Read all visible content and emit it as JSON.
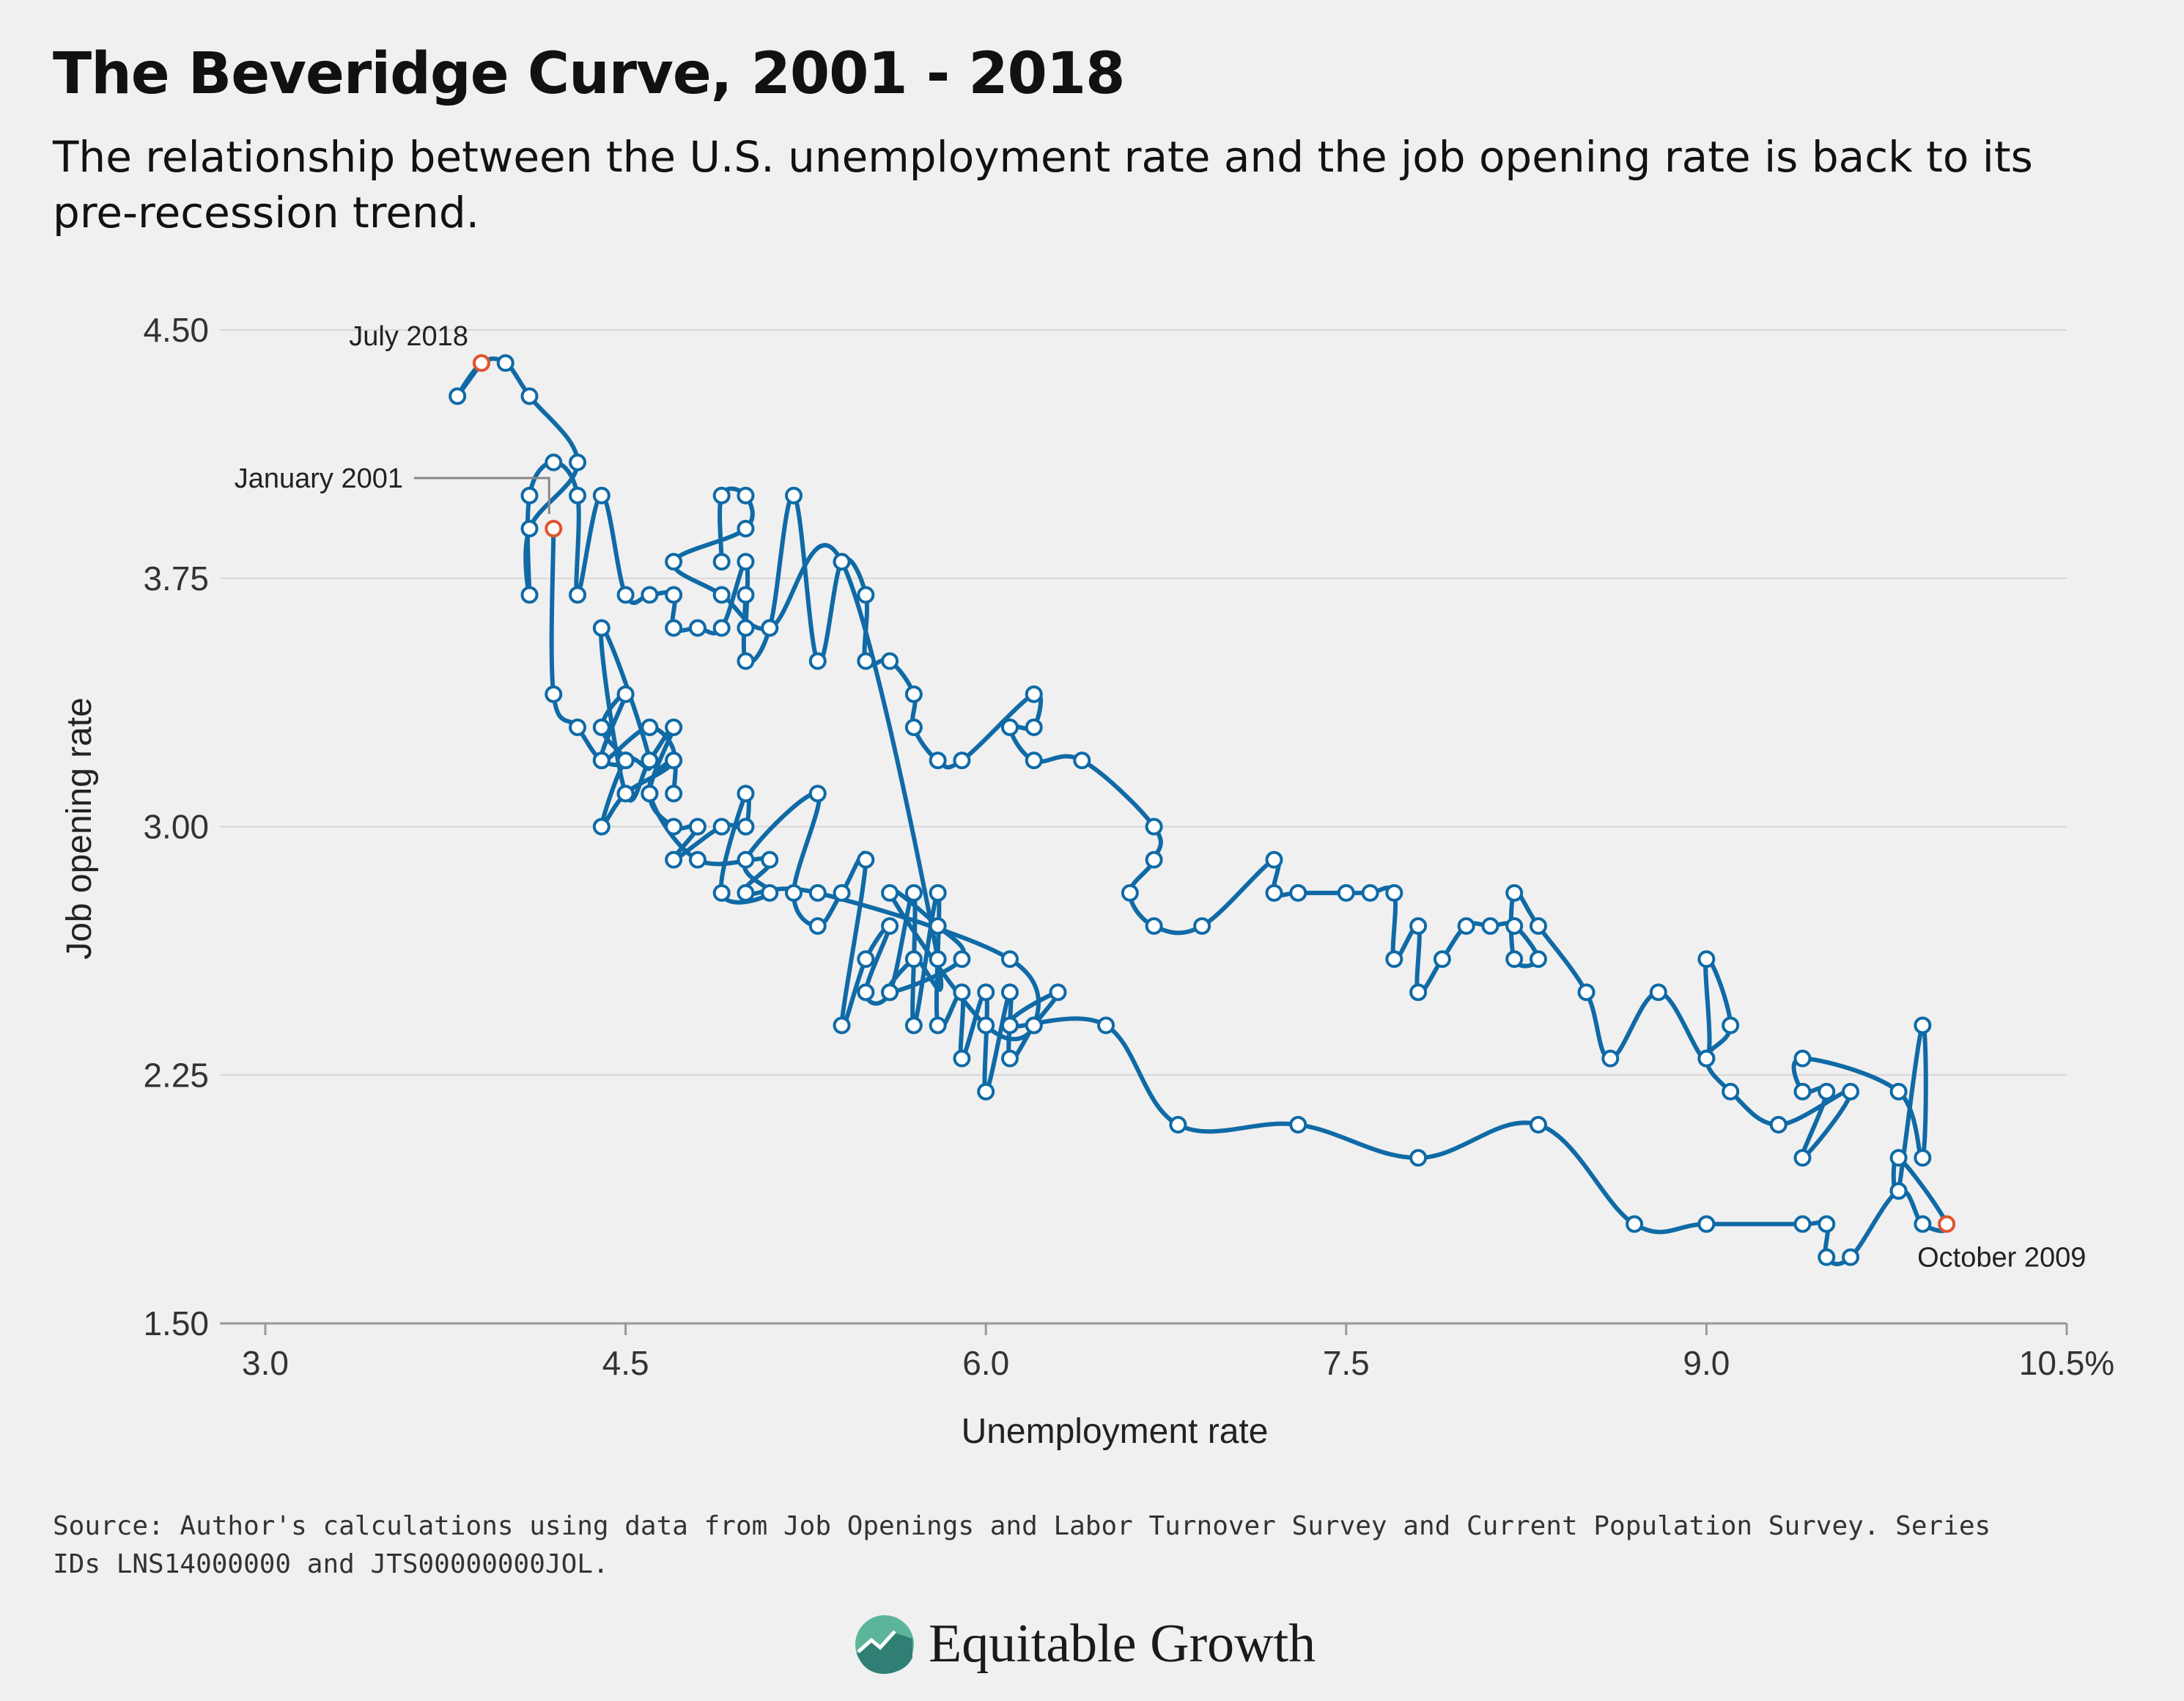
{
  "title": "The Beveridge Curve, 2001 - 2018",
  "subtitle": "The relationship between the U.S. unemployment rate and the job opening rate is back to its pre-recession trend.",
  "source": "Source: Author's calculations using data from Job Openings and Labor Turnover Survey and Current Population Survey. Series IDs LNS14000000 and JTS00000000JOL.",
  "logo": {
    "text": "Equitable Growth",
    "icon": "equitable-growth-logo-icon"
  },
  "colors": {
    "line": "#0f6aa6",
    "highlight": "#e0542e",
    "grid": "#d6d6d6",
    "background": "#f0f0f0"
  },
  "chart_data": {
    "type": "line",
    "xlabel": "Unemployment rate",
    "ylabel": "Job opening rate",
    "xlim": [
      3.0,
      10.5
    ],
    "ylim": [
      1.5,
      4.5
    ],
    "x_ticks": [
      "3.0",
      "4.5",
      "6.0",
      "7.5",
      "9.0",
      "10.5%"
    ],
    "x_tick_values": [
      3.0,
      4.5,
      6.0,
      7.5,
      9.0,
      10.5
    ],
    "y_ticks": [
      "1.50",
      "2.25",
      "3.00",
      "3.75",
      "4.50"
    ],
    "y_tick_values": [
      1.5,
      2.25,
      3.0,
      3.75,
      4.5
    ],
    "grid": true,
    "annotations": [
      {
        "label": "July 2018",
        "x": 3.9,
        "y": 4.4
      },
      {
        "label": "January 2001",
        "x": 4.2,
        "y": 3.9
      },
      {
        "label": "October 2009",
        "x": 10.0,
        "y": 1.8
      }
    ],
    "series": [
      {
        "points": [
          [
            4.2,
            3.9
          ],
          [
            4.2,
            3.4
          ],
          [
            4.3,
            3.3
          ],
          [
            4.4,
            3.2
          ],
          [
            4.5,
            3.2
          ],
          [
            4.4,
            3.3
          ],
          [
            4.5,
            3.4
          ],
          [
            4.4,
            3.2
          ],
          [
            4.6,
            3.3
          ],
          [
            4.7,
            3.2
          ],
          [
            4.5,
            3.1
          ],
          [
            4.4,
            3.0
          ],
          [
            4.5,
            3.2
          ],
          [
            4.6,
            3.2
          ],
          [
            4.4,
            3.6
          ],
          [
            4.5,
            3.1
          ],
          [
            4.6,
            3.2
          ],
          [
            4.7,
            3.3
          ],
          [
            4.6,
            3.1
          ],
          [
            4.7,
            3.0
          ],
          [
            4.8,
            3.0
          ],
          [
            4.7,
            2.9
          ],
          [
            4.9,
            3.0
          ],
          [
            5.0,
            3.0
          ],
          [
            5.0,
            3.1
          ],
          [
            4.9,
            2.8
          ],
          [
            5.1,
            2.8
          ],
          [
            5.0,
            2.9
          ],
          [
            5.3,
            3.1
          ],
          [
            5.2,
            2.8
          ],
          [
            5.3,
            2.7
          ],
          [
            5.4,
            2.8
          ],
          [
            5.5,
            2.9
          ],
          [
            5.4,
            2.4
          ],
          [
            5.5,
            2.6
          ],
          [
            5.6,
            2.7
          ],
          [
            5.5,
            2.5
          ],
          [
            5.6,
            2.5
          ],
          [
            5.7,
            2.8
          ],
          [
            5.7,
            2.4
          ],
          [
            5.8,
            2.8
          ],
          [
            5.8,
            2.4
          ],
          [
            5.9,
            2.5
          ],
          [
            5.9,
            2.3
          ],
          [
            6.0,
            2.5
          ],
          [
            6.0,
            2.2
          ],
          [
            6.1,
            2.5
          ],
          [
            6.1,
            2.3
          ],
          [
            6.2,
            2.4
          ],
          [
            6.3,
            2.5
          ],
          [
            6.1,
            2.4
          ],
          [
            6.5,
            2.4
          ],
          [
            6.8,
            2.1
          ],
          [
            7.3,
            2.1
          ],
          [
            7.8,
            2.0
          ],
          [
            8.3,
            2.1
          ],
          [
            8.7,
            1.8
          ],
          [
            9.0,
            1.8
          ],
          [
            9.4,
            1.8
          ],
          [
            9.5,
            1.8
          ],
          [
            9.5,
            1.7
          ],
          [
            9.6,
            1.7
          ],
          [
            9.8,
            1.9
          ],
          [
            9.9,
            1.8
          ],
          [
            10.0,
            1.8
          ],
          [
            9.8,
            2.0
          ],
          [
            9.8,
            1.9
          ],
          [
            9.9,
            2.4
          ],
          [
            9.9,
            2.0
          ],
          [
            9.8,
            2.2
          ],
          [
            9.4,
            2.3
          ],
          [
            9.4,
            2.2
          ],
          [
            9.5,
            2.2
          ],
          [
            9.4,
            2.0
          ],
          [
            9.6,
            2.2
          ],
          [
            9.3,
            2.1
          ],
          [
            9.1,
            2.2
          ],
          [
            9.0,
            2.3
          ],
          [
            9.1,
            2.4
          ],
          [
            9.0,
            2.6
          ],
          [
            9.0,
            2.3
          ],
          [
            8.8,
            2.5
          ],
          [
            8.6,
            2.3
          ],
          [
            8.5,
            2.5
          ],
          [
            8.3,
            2.7
          ],
          [
            8.2,
            2.8
          ],
          [
            8.2,
            2.6
          ],
          [
            8.3,
            2.6
          ],
          [
            8.2,
            2.7
          ],
          [
            8.1,
            2.7
          ],
          [
            8.0,
            2.7
          ],
          [
            7.9,
            2.6
          ],
          [
            7.8,
            2.5
          ],
          [
            7.8,
            2.7
          ],
          [
            7.7,
            2.6
          ],
          [
            7.7,
            2.8
          ],
          [
            7.6,
            2.8
          ],
          [
            7.5,
            2.8
          ],
          [
            7.3,
            2.8
          ],
          [
            7.2,
            2.8
          ],
          [
            7.2,
            2.9
          ],
          [
            6.9,
            2.7
          ],
          [
            6.7,
            2.7
          ],
          [
            6.6,
            2.8
          ],
          [
            6.7,
            2.9
          ],
          [
            6.7,
            3.0
          ],
          [
            6.4,
            3.2
          ],
          [
            6.2,
            3.2
          ],
          [
            6.1,
            3.3
          ],
          [
            6.2,
            3.3
          ],
          [
            6.2,
            3.4
          ],
          [
            5.9,
            3.2
          ],
          [
            5.8,
            3.2
          ],
          [
            5.7,
            3.3
          ],
          [
            5.7,
            3.4
          ],
          [
            5.6,
            3.5
          ],
          [
            5.5,
            3.5
          ],
          [
            5.5,
            3.7
          ],
          [
            5.4,
            3.8
          ],
          [
            5.3,
            3.5
          ],
          [
            5.2,
            4.0
          ],
          [
            5.1,
            3.6
          ],
          [
            5.0,
            3.5
          ],
          [
            5.0,
            3.7
          ],
          [
            5.0,
            3.6
          ],
          [
            5.0,
            3.8
          ],
          [
            4.9,
            3.6
          ],
          [
            4.8,
            3.6
          ],
          [
            4.7,
            3.6
          ],
          [
            4.7,
            3.7
          ],
          [
            4.6,
            3.7
          ],
          [
            4.5,
            3.7
          ],
          [
            4.4,
            4.0
          ],
          [
            4.3,
            3.7
          ],
          [
            4.3,
            4.0
          ],
          [
            4.2,
            4.1
          ],
          [
            4.1,
            4.0
          ],
          [
            4.1,
            3.7
          ],
          [
            4.1,
            3.9
          ],
          [
            4.3,
            4.1
          ],
          [
            4.1,
            4.3
          ],
          [
            4.0,
            4.4
          ],
          [
            3.9,
            4.4
          ],
          [
            3.8,
            4.3
          ],
          [
            3.9,
            4.4
          ]
        ]
      }
    ],
    "extra_loop_points": [
      [
        4.9,
        3.8
      ],
      [
        4.9,
        4.0
      ],
      [
        5.0,
        4.0
      ],
      [
        5.0,
        3.9
      ],
      [
        4.7,
        3.8
      ],
      [
        4.9,
        3.7
      ],
      [
        5.1,
        3.6
      ],
      [
        5.4,
        3.8
      ],
      [
        5.8,
        2.6
      ],
      [
        5.7,
        2.6
      ],
      [
        5.6,
        2.5
      ],
      [
        5.9,
        2.6
      ],
      [
        5.8,
        2.7
      ],
      [
        5.6,
        2.8
      ],
      [
        6.0,
        2.4
      ],
      [
        6.2,
        2.4
      ],
      [
        6.1,
        2.6
      ],
      [
        5.3,
        2.8
      ],
      [
        5.0,
        2.8
      ],
      [
        5.1,
        2.9
      ],
      [
        4.8,
        2.9
      ],
      [
        4.6,
        3.1
      ],
      [
        4.7,
        3.2
      ],
      [
        4.7,
        3.1
      ]
    ]
  }
}
